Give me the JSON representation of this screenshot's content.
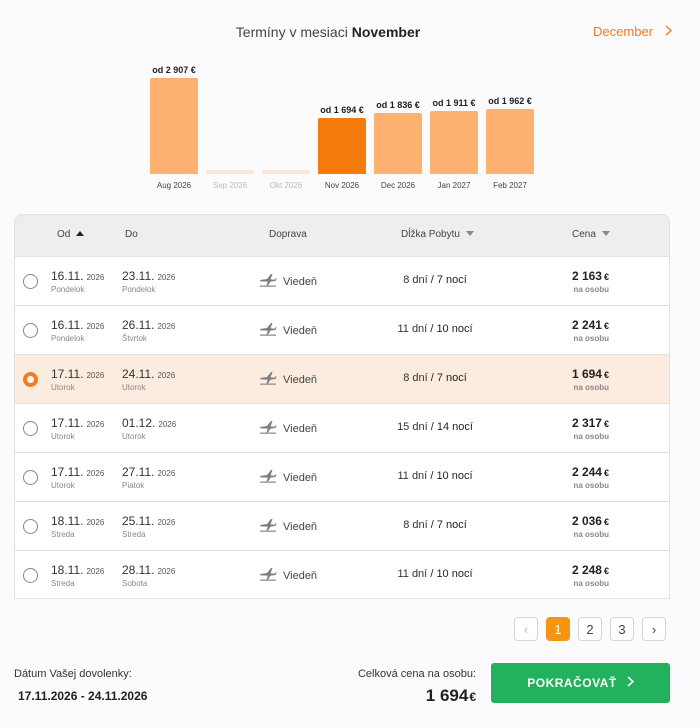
{
  "header": {
    "prefix": "Termíny v mesiaci",
    "month": "November",
    "next_month_label": "December",
    "next_icon": "chevron-right-icon"
  },
  "chart_data": {
    "type": "bar",
    "categories": [
      "Aug 2026",
      "Sep 2026",
      "Okt 2026",
      "Nov 2026",
      "Dec 2026",
      "Jan 2027",
      "Feb 2027"
    ],
    "values": [
      2907,
      null,
      null,
      1694,
      1836,
      1911,
      1962
    ],
    "data_labels": [
      "od 2 907 €",
      "",
      "",
      "od 1 694 €",
      "od 1 836 €",
      "od 1 911 €",
      "od 1 962 €"
    ],
    "selected_category": "Nov 2026",
    "colors": {
      "normal": "#fdb171",
      "selected": "#f47b0c",
      "empty": "#fbe7d9"
    }
  },
  "table": {
    "headers": {
      "from": "Od",
      "to": "Do",
      "transport": "Doprava",
      "stay": "Dĺžka Pobytu",
      "price": "Cena"
    },
    "rows": [
      {
        "from_date": "16.11.",
        "from_year": "2026",
        "from_day": "Pondelok",
        "to_date": "23.11.",
        "to_year": "2026",
        "to_day": "Pondelok",
        "transport": "Viedeň",
        "days": "8 dní",
        "sep": "/",
        "nights": "7 nocí",
        "price": "2 163",
        "currency": "€",
        "per_person": "na osobu",
        "selected": false
      },
      {
        "from_date": "16.11.",
        "from_year": "2026",
        "from_day": "Pondelok",
        "to_date": "26.11.",
        "to_year": "2026",
        "to_day": "Štvrtok",
        "transport": "Viedeň",
        "days": "11 dní",
        "sep": "/",
        "nights": "10 nocí",
        "price": "2 241",
        "currency": "€",
        "per_person": "na osobu",
        "selected": false
      },
      {
        "from_date": "17.11.",
        "from_year": "2026",
        "from_day": "Utorok",
        "to_date": "24.11.",
        "to_year": "2026",
        "to_day": "Utorok",
        "transport": "Viedeň",
        "days": "8 dní",
        "sep": "/",
        "nights": "7 nocí",
        "price": "1 694",
        "currency": "€",
        "per_person": "na osobu",
        "selected": true
      },
      {
        "from_date": "17.11.",
        "from_year": "2026",
        "from_day": "Utorok",
        "to_date": "01.12.",
        "to_year": "2026",
        "to_day": "Utorok",
        "transport": "Viedeň",
        "days": "15 dní",
        "sep": "/",
        "nights": "14 nocí",
        "price": "2 317",
        "currency": "€",
        "per_person": "na osobu",
        "selected": false
      },
      {
        "from_date": "17.11.",
        "from_year": "2026",
        "from_day": "Utorok",
        "to_date": "27.11.",
        "to_year": "2026",
        "to_day": "Piatok",
        "transport": "Viedeň",
        "days": "11 dní",
        "sep": "/",
        "nights": "10 nocí",
        "price": "2 244",
        "currency": "€",
        "per_person": "na osobu",
        "selected": false
      },
      {
        "from_date": "18.11.",
        "from_year": "2026",
        "from_day": "Streda",
        "to_date": "25.11.",
        "to_year": "2026",
        "to_day": "Streda",
        "transport": "Viedeň",
        "days": "8 dní",
        "sep": "/",
        "nights": "7 nocí",
        "price": "2 036",
        "currency": "€",
        "per_person": "na osobu",
        "selected": false
      },
      {
        "from_date": "18.11.",
        "from_year": "2026",
        "from_day": "Streda",
        "to_date": "28.11.",
        "to_year": "2026",
        "to_day": "Sobota",
        "transport": "Viedeň",
        "days": "11 dní",
        "sep": "/",
        "nights": "10 nocí",
        "price": "2 248",
        "currency": "€",
        "per_person": "na osobu",
        "selected": false
      }
    ]
  },
  "pagination": {
    "prev": "‹",
    "pages": [
      "1",
      "2",
      "3"
    ],
    "current": "1",
    "next": "›"
  },
  "footer": {
    "dates_label": "Dátum Vašej dovolenky:",
    "dates_value": "17.11.2026 - 24.11.2026",
    "total_label": "Celková cena na osobu:",
    "total_value": "1 694",
    "total_currency": "€",
    "cta_label": "POKRAČOVAŤ",
    "cta_icon": "chevron-right-icon"
  }
}
